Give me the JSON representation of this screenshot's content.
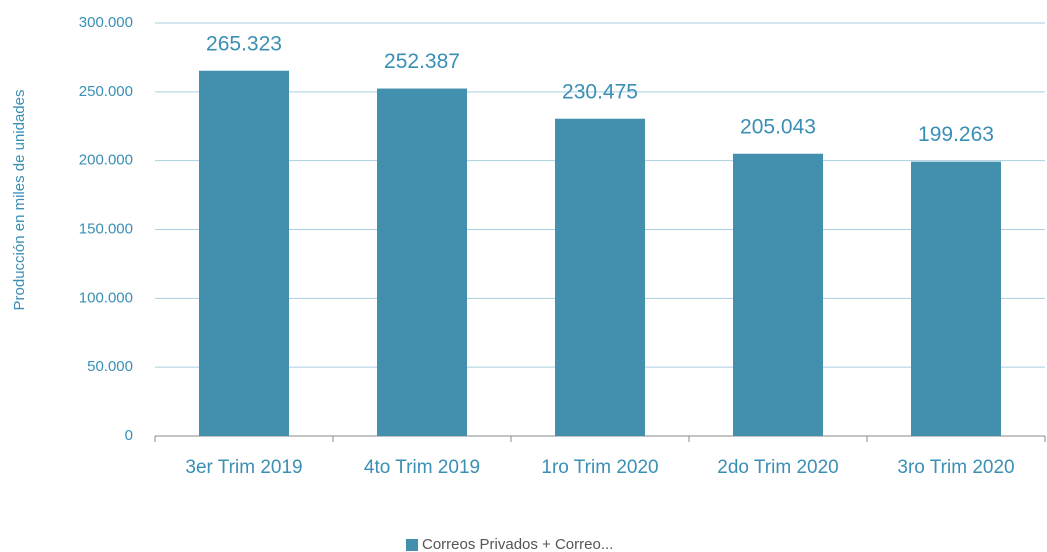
{
  "chart_data": {
    "type": "bar",
    "y_axis_label": "Producción en miles de unidades",
    "categories": [
      "3er Trim 2019",
      "4to Trim 2019",
      "1ro Trim 2020",
      "2do Trim 2020",
      "3ro Trim 2020"
    ],
    "series": [
      {
        "name": "Correos Privados + Correo...",
        "color": "#438fae",
        "values": [
          265323,
          252387,
          230475,
          205043,
          199263
        ],
        "value_labels": [
          "265.323",
          "252.387",
          "230.475",
          "205.043",
          "199.263"
        ]
      }
    ],
    "ylim": [
      0,
      300000
    ],
    "yticks": [
      0,
      {
        "value": 50000,
        "label": "50.000"
      },
      {
        "value": 100000,
        "label": "100.000"
      },
      {
        "value": 150000,
        "label": "150.000"
      },
      {
        "value": 200000,
        "label": "200.000"
      },
      {
        "value": 250000,
        "label": "250.000"
      },
      {
        "value": 300000,
        "label": "300.000"
      }
    ],
    "grid": true,
    "legend": "bottom"
  }
}
